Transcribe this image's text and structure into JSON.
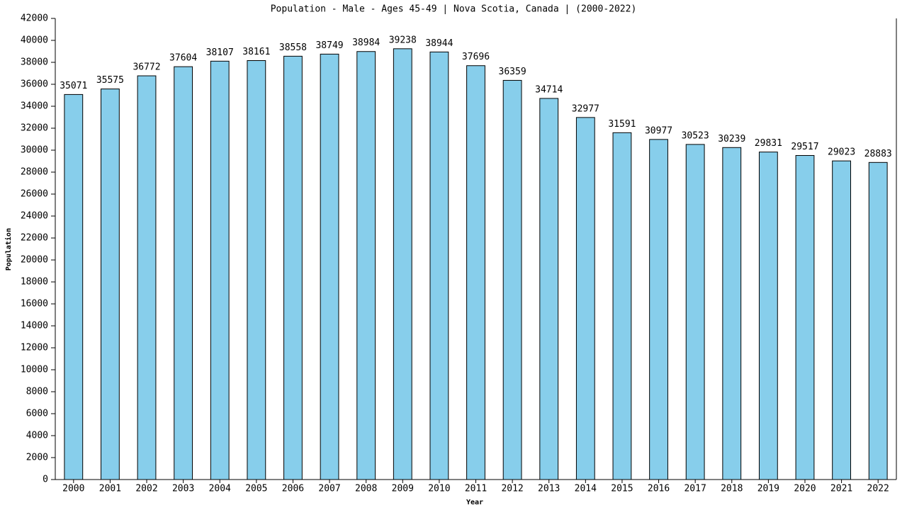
{
  "chart_data": {
    "type": "bar",
    "title": "Population - Male - Ages 45-49 | Nova Scotia, Canada |  (2000-2022)",
    "x_label": "Year",
    "y_label": "Population",
    "categories": [
      "2000",
      "2001",
      "2002",
      "2003",
      "2004",
      "2005",
      "2006",
      "2007",
      "2008",
      "2009",
      "2010",
      "2011",
      "2012",
      "2013",
      "2014",
      "2015",
      "2016",
      "2017",
      "2018",
      "2019",
      "2020",
      "2021",
      "2022"
    ],
    "values": [
      35071,
      35575,
      36772,
      37604,
      38107,
      38161,
      38558,
      38749,
      38984,
      39238,
      38944,
      37696,
      36359,
      34714,
      32977,
      31591,
      30977,
      30523,
      30239,
      29831,
      29517,
      29023,
      28883
    ],
    "color": "#87ceeb",
    "ylim": [
      0,
      42000
    ],
    "yticks": [
      0,
      2000,
      4000,
      6000,
      8000,
      10000,
      12000,
      14000,
      16000,
      18000,
      20000,
      22000,
      24000,
      26000,
      28000,
      30000,
      32000,
      34000,
      36000,
      38000,
      40000,
      42000
    ],
    "grid": false
  }
}
